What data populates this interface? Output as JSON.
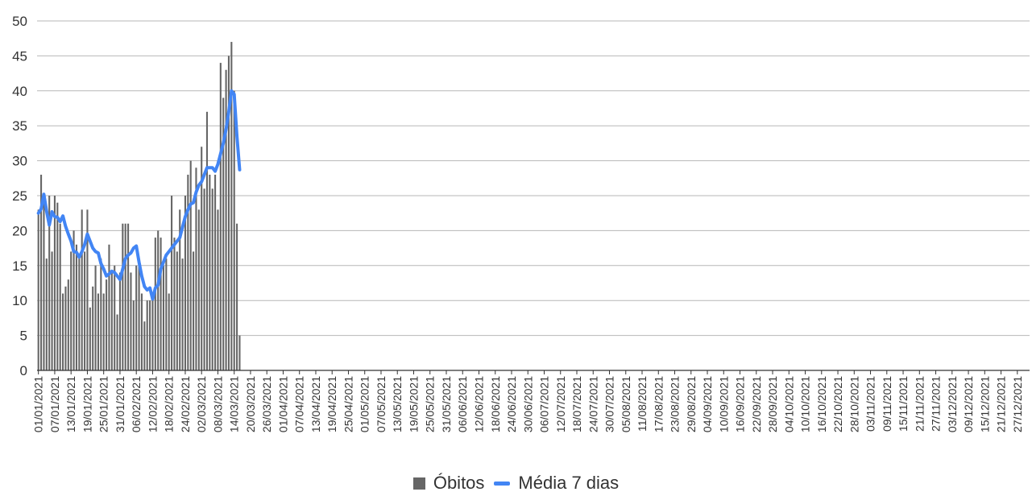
{
  "chart_data": {
    "type": "bar",
    "x_start": "01/01/2021",
    "x_end": "31/12/2021",
    "tick_labels": [
      "01/01/2021",
      "07/01/2021",
      "13/01/2021",
      "19/01/2021",
      "25/01/2021",
      "31/01/2021",
      "06/02/2021",
      "12/02/2021",
      "18/02/2021",
      "24/02/2021",
      "02/03/2021",
      "08/03/2021",
      "14/03/2021",
      "20/03/2021",
      "26/03/2021",
      "01/04/2021",
      "07/04/2021",
      "13/04/2021",
      "19/04/2021",
      "25/04/2021",
      "01/05/2021",
      "07/05/2021",
      "13/05/2021",
      "19/05/2021",
      "25/05/2021",
      "31/05/2021",
      "06/06/2021",
      "12/06/2021",
      "18/06/2021",
      "24/06/2021",
      "30/06/2021",
      "06/07/2021",
      "12/07/2021",
      "18/07/2021",
      "24/07/2021",
      "30/07/2021",
      "05/08/2021",
      "11/08/2021",
      "17/08/2021",
      "23/08/2021",
      "29/08/2021",
      "04/09/2021",
      "10/09/2021",
      "16/09/2021",
      "22/09/2021",
      "28/09/2021",
      "04/10/2021",
      "10/10/2021",
      "16/10/2021",
      "22/10/2021",
      "28/10/2021",
      "03/11/2021",
      "09/11/2021",
      "15/11/2021",
      "21/11/2021",
      "27/11/2021",
      "03/12/2021",
      "09/12/2021",
      "15/12/2021",
      "21/12/2021",
      "27/12/2021"
    ],
    "ylim": [
      0,
      50
    ],
    "yticks": [
      0,
      5,
      10,
      15,
      20,
      25,
      30,
      35,
      40,
      45,
      50
    ],
    "grid": true,
    "legend_position": "bottom",
    "series": [
      {
        "name": "Óbitos",
        "kind": "bar",
        "color": "#666666",
        "values": [
          23,
          28,
          25,
          16,
          25,
          17,
          25,
          24,
          21,
          11,
          12,
          13,
          17,
          20,
          18,
          16,
          23,
          17,
          23,
          9,
          12,
          15,
          11,
          16,
          11,
          13,
          18,
          14,
          15,
          8,
          14,
          21,
          21,
          21,
          14,
          10,
          15,
          16,
          11,
          7,
          10,
          10,
          11,
          19,
          20,
          19,
          15,
          16,
          11,
          25,
          19,
          17,
          23,
          16,
          25,
          28,
          30,
          17,
          29,
          23,
          32,
          26,
          37,
          28,
          26,
          28,
          23,
          44,
          39,
          43,
          45,
          47,
          40,
          21,
          5
        ]
      },
      {
        "name": "Média 7 dias",
        "kind": "line",
        "color": "#4285F4",
        "values": [
          22.5,
          23.1,
          25.2,
          22.8,
          20.8,
          22.7,
          22.0,
          21.9,
          21.3,
          22.1,
          20.6,
          19.5,
          18.5,
          17.0,
          16.9,
          16.2,
          17.0,
          18.0,
          19.5,
          18.5,
          17.5,
          17.0,
          16.8,
          15.3,
          14.5,
          13.5,
          13.8,
          14.2,
          14.0,
          13.5,
          13.0,
          14.5,
          16.0,
          16.5,
          16.8,
          17.5,
          17.8,
          15.5,
          13.5,
          12.0,
          11.5,
          11.8,
          10.2,
          11.8,
          12.2,
          14.5,
          15.5,
          16.5,
          17.0,
          17.5,
          18.0,
          18.5,
          19.0,
          20.5,
          22.0,
          23.0,
          23.8,
          24.0,
          25.5,
          26.5,
          27.0,
          28.0,
          29.0,
          29.0,
          29.0,
          28.5,
          29.5,
          31.0,
          32.5,
          34.5,
          37.0,
          40.0,
          39.5,
          33.5,
          28.7
        ]
      }
    ]
  }
}
